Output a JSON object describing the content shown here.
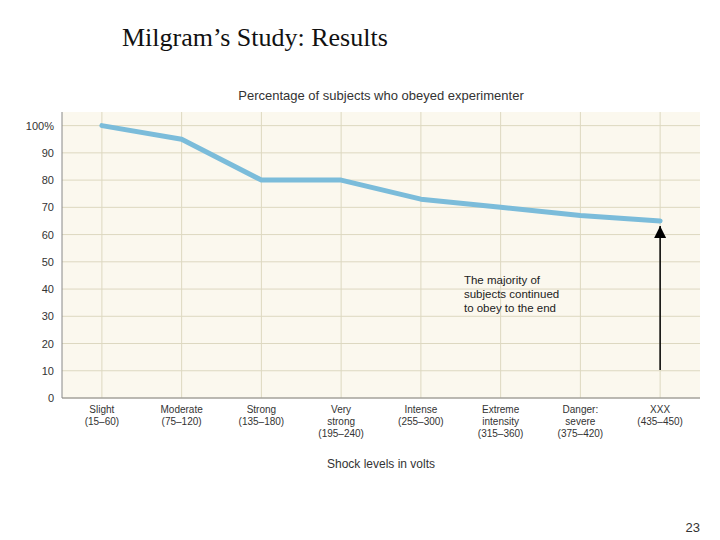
{
  "chart_data": {
    "type": "line",
    "title": "Milgram’s Study: Results",
    "subtitle": "Percentage of subjects who obeyed experimenter",
    "x_label": "Shock levels in volts",
    "categories": [
      "Slight\n(15–60)",
      "Moderate\n(75–120)",
      "Strong\n(135–180)",
      "Very\nstrong\n(195–240)",
      "Intense\n(255–300)",
      "Extreme\nintensity\n(315–360)",
      "Danger:\nsevere\n(375–420)",
      "XXX\n(435–450)"
    ],
    "values": [
      100,
      95,
      80,
      80,
      73,
      70,
      67,
      65
    ],
    "color": "#7bbcda",
    "ylim": [
      0,
      105
    ],
    "yticks": [
      0,
      10,
      20,
      30,
      40,
      50,
      60,
      70,
      80,
      90,
      {
        "value": 100,
        "label": "100%"
      }
    ],
    "grid": true,
    "annotations": [
      "The majority of\nsubjects continued\nto obey to the end"
    ],
    "page_number": "23"
  }
}
